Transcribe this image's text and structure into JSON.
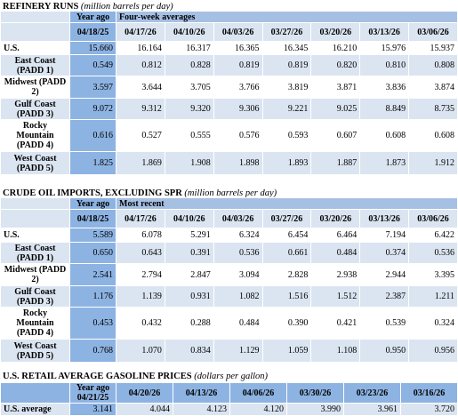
{
  "sections": [
    {
      "title": "REFINERY RUNS",
      "unit": "(million barrels per day)",
      "year_ago_label": "Year ago",
      "group_label": "Four-week averages",
      "dates": [
        "04/18/25",
        "04/17/26",
        "04/10/26",
        "04/03/26",
        "03/27/26",
        "03/20/26",
        "03/13/26",
        "03/06/26"
      ],
      "rows": [
        {
          "label": "U.S.",
          "values": [
            "15.660",
            "16.164",
            "16.317",
            "16.365",
            "16.345",
            "16.210",
            "15.976",
            "15.937"
          ]
        },
        {
          "label": "East Coast (PADD 1)",
          "values": [
            "0.549",
            "0.812",
            "0.828",
            "0.819",
            "0.819",
            "0.820",
            "0.810",
            "0.808"
          ]
        },
        {
          "label": "Midwest (PADD 2)",
          "values": [
            "3.597",
            "3.644",
            "3.705",
            "3.766",
            "3.819",
            "3.871",
            "3.836",
            "3.874"
          ]
        },
        {
          "label": "Gulf Coast (PADD 3)",
          "values": [
            "9.072",
            "9.312",
            "9.320",
            "9.306",
            "9.221",
            "9.025",
            "8.849",
            "8.735"
          ]
        },
        {
          "label": "Rocky Mountain (PADD 4)",
          "values": [
            "0.616",
            "0.527",
            "0.555",
            "0.576",
            "0.593",
            "0.607",
            "0.608",
            "0.608"
          ]
        },
        {
          "label": "West Coast (PADD 5)",
          "values": [
            "1.825",
            "1.869",
            "1.908",
            "1.898",
            "1.893",
            "1.887",
            "1.873",
            "1.912"
          ]
        }
      ]
    },
    {
      "title": "CRUDE OIL IMPORTS, EXCLUDING SPR",
      "unit": "(million barrels per day)",
      "year_ago_label": "Year ago",
      "group_label": "Most recent",
      "dates": [
        "04/18/25",
        "04/17/26",
        "04/10/26",
        "04/03/26",
        "03/27/26",
        "03/20/26",
        "03/13/26",
        "03/06/26"
      ],
      "rows": [
        {
          "label": "U.S.",
          "values": [
            "5.589",
            "6.078",
            "5.291",
            "6.324",
            "6.454",
            "6.464",
            "7.194",
            "6.422"
          ]
        },
        {
          "label": "East Coast (PADD 1)",
          "values": [
            "0.650",
            "0.643",
            "0.391",
            "0.536",
            "0.661",
            "0.484",
            "0.374",
            "0.536"
          ]
        },
        {
          "label": "Midwest (PADD 2)",
          "values": [
            "2.541",
            "2.794",
            "2.847",
            "3.094",
            "2.828",
            "2.938",
            "2.944",
            "3.395"
          ]
        },
        {
          "label": "Gulf Coast (PADD 3)",
          "values": [
            "1.176",
            "1.139",
            "0.931",
            "1.082",
            "1.516",
            "1.512",
            "2.387",
            "1.211"
          ]
        },
        {
          "label": "Rocky Mountain (PADD 4)",
          "values": [
            "0.453",
            "0.432",
            "0.288",
            "0.484",
            "0.390",
            "0.421",
            "0.539",
            "0.324"
          ]
        },
        {
          "label": "West Coast (PADD 5)",
          "values": [
            "0.768",
            "1.070",
            "0.834",
            "1.129",
            "1.059",
            "1.108",
            "0.950",
            "0.956"
          ]
        }
      ]
    }
  ],
  "gasoline": {
    "title": "U.S. RETAIL AVERAGE GASOLINE PRICES",
    "unit": "(dollars per gallon)",
    "year_ago_label": "Year ago",
    "dates": [
      "04/21/25",
      "04/20/26",
      "04/13/26",
      "04/06/26",
      "03/30/26",
      "03/23/26",
      "03/16/26"
    ],
    "row": {
      "label": "U.S. average",
      "values": [
        "3.141",
        "4.044",
        "4.123",
        "4.120",
        "3.990",
        "3.961",
        "3.720"
      ]
    }
  }
}
